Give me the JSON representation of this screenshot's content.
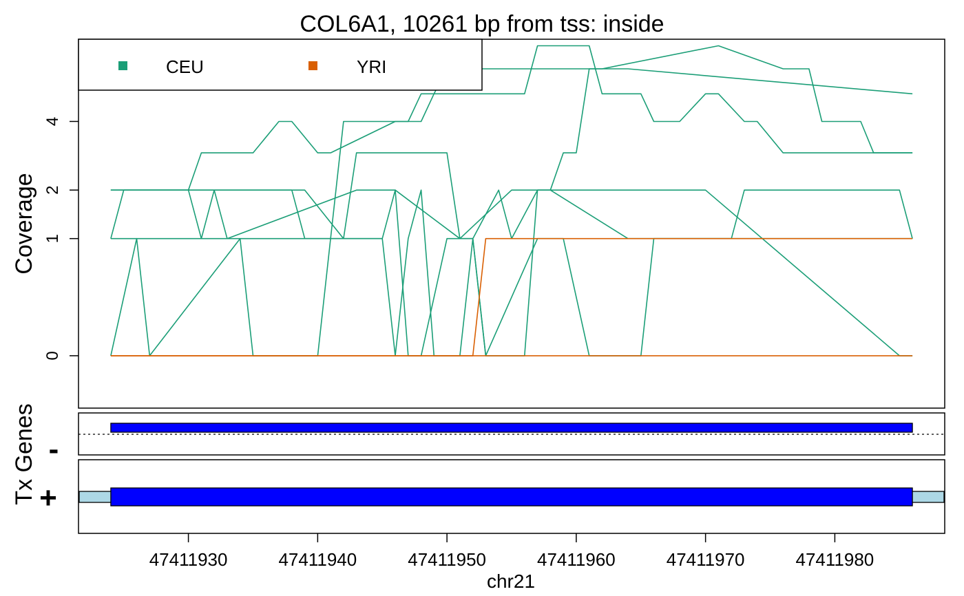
{
  "chart_data": {
    "type": "line",
    "title": "COL6A1, 10261 bp from tss: inside",
    "xlabel": "chr21",
    "ylabel": "Coverage",
    "xlim": [
      47411921.5,
      47411988.5
    ],
    "ylim": [
      -0.2,
      7.3
    ],
    "y_transform": "sqrt",
    "x_ticks": [
      47411930,
      47411940,
      47411950,
      47411960,
      47411970,
      47411980
    ],
    "y_ticks": [
      0,
      1,
      2,
      4
    ],
    "legend": {
      "placement": "top-left",
      "entries": [
        {
          "name": "CEU",
          "color": "#1b9e77"
        },
        {
          "name": "YRI",
          "color": "#d95f02"
        }
      ]
    },
    "series": [
      {
        "name": "CEU",
        "color": "#1b9e77",
        "x": [
          47411924,
          47411925,
          47411930,
          47411931,
          47411935,
          47411937,
          47411938,
          47411940,
          47411941,
          47411946,
          47411947,
          47411948,
          47411949,
          47411956,
          47411957,
          47411961,
          47411962,
          47411963,
          47411965,
          47411966,
          47411968,
          47411970,
          47411971,
          47411973,
          47411974,
          47411976,
          47411977,
          47411986
        ],
        "y": [
          1,
          2,
          2,
          3,
          3,
          4,
          4,
          3,
          3,
          4,
          4,
          5,
          5,
          5,
          7,
          7,
          5,
          5,
          5,
          4,
          4,
          5,
          5,
          4,
          4,
          3,
          3,
          3
        ]
      },
      {
        "name": "CEU",
        "color": "#1b9e77",
        "x": [
          47411924,
          47411930,
          47411931,
          47411936,
          47411941,
          47411942,
          47411943,
          47411948,
          47411949,
          47411950,
          47411951,
          47411955,
          47411956,
          47411958,
          47411961,
          47411962,
          47411971,
          47411976,
          47411977,
          47411978,
          47411979,
          47411982,
          47411983,
          47411986
        ],
        "y": [
          2,
          2,
          1,
          1,
          1,
          4,
          4,
          4,
          5,
          6,
          6,
          6,
          6,
          6,
          6,
          6,
          7,
          6,
          6,
          6,
          4,
          4,
          3,
          3
        ]
      },
      {
        "name": "CEU",
        "color": "#1b9e77",
        "x": [
          47411924,
          47411926,
          47411927,
          47411934,
          47411935,
          47411940,
          47411941,
          47411942,
          47411943,
          47411950,
          47411951,
          47411955,
          47411956,
          47411958,
          47411959,
          47411960,
          47411961,
          47411963,
          47411964,
          47411986
        ],
        "y": [
          0,
          1,
          0,
          1,
          0,
          0,
          1,
          1,
          3,
          3,
          1,
          2,
          2,
          2,
          3,
          3,
          6,
          6,
          6,
          5
        ]
      },
      {
        "name": "CEU",
        "color": "#1b9e77",
        "x": [
          47411924,
          47411932,
          47411933,
          47411943,
          47411946,
          47411947,
          47411948,
          47411950,
          47411952,
          47411953,
          47411957,
          47411959,
          47411961,
          47411965,
          47411966,
          47411972,
          47411973,
          47411985,
          47411986
        ],
        "y": [
          2,
          2,
          1,
          2,
          2,
          0,
          0,
          1,
          1,
          0,
          1,
          1,
          0,
          0,
          1,
          1,
          2,
          2,
          1
        ]
      },
      {
        "name": "CEU",
        "color": "#1b9e77",
        "x": [
          47411924,
          47411931,
          47411932,
          47411933,
          47411939,
          47411942,
          47411943,
          47411945,
          47411946,
          47411947,
          47411948,
          47411949,
          47411951,
          47411952,
          47411954,
          47411955,
          47411957,
          47411958,
          47411964,
          47411986
        ],
        "y": [
          1,
          1,
          2,
          2,
          2,
          1,
          1,
          1,
          0,
          1,
          2,
          0,
          0,
          1,
          2,
          1,
          2,
          2,
          1,
          1
        ]
      },
      {
        "name": "CEU",
        "color": "#1b9e77",
        "x": [
          47411924,
          47411925,
          47411926,
          47411938,
          47411939,
          47411945,
          47411946,
          47411951,
          47411952,
          47411953,
          47411956,
          47411957,
          47411970,
          47411985,
          47411986
        ],
        "y": [
          2,
          2,
          2,
          2,
          1,
          1,
          2,
          1,
          1,
          0,
          0,
          2,
          2,
          0,
          0
        ]
      },
      {
        "name": "YRI",
        "color": "#d95f02",
        "x": [
          47411924,
          47411952,
          47411953,
          47411986
        ],
        "y": [
          0,
          0,
          1,
          1
        ]
      },
      {
        "name": "YRI",
        "color": "#d95f02",
        "x": [
          47411924,
          47411986
        ],
        "y": [
          0,
          0
        ]
      }
    ],
    "tracks": [
      {
        "label": "-",
        "exons": [
          [
            47411924,
            47411986
          ]
        ],
        "color": "#0000ff",
        "dotted_line": true
      },
      {
        "label": "+",
        "exons": [
          [
            47411924,
            47411986
          ]
        ],
        "color": "#0000ff",
        "utr_color": "#add8e6"
      }
    ],
    "track_axis_label": "Tx Genes"
  }
}
